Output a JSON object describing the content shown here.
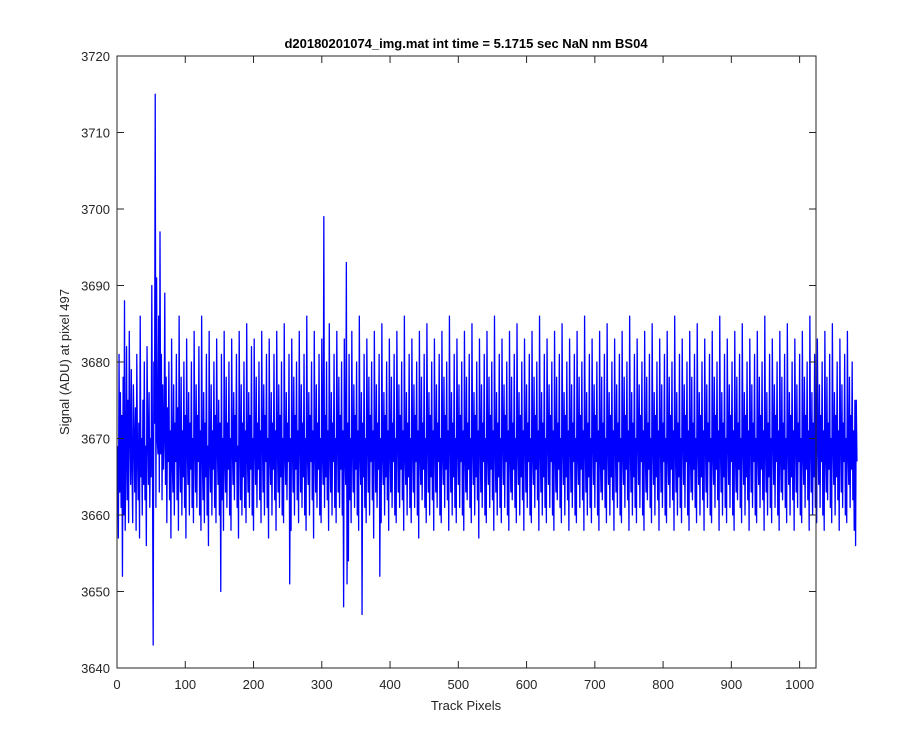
{
  "colors": {
    "series": "#0000ff",
    "axes": "#262626",
    "background": "#ffffff"
  },
  "chart_data": {
    "type": "line",
    "title": "d20180201074_img.mat int time = 5.1715 sec  NaN nm BS04",
    "xlabel": "Track Pixels",
    "ylabel": "Signal (ADU) at pixel 497",
    "xlim": [
      0,
      1024
    ],
    "ylim": [
      3640,
      3720
    ],
    "xticks": [
      0,
      100,
      200,
      300,
      400,
      500,
      600,
      700,
      800,
      900,
      1000
    ],
    "yticks": [
      3640,
      3650,
      3660,
      3670,
      3680,
      3690,
      3700,
      3710,
      3720
    ],
    "grid": false,
    "legend": "none",
    "series": [
      {
        "x_start": 1,
        "x_step": 1,
        "values": [
          3669,
          3657,
          3681,
          3663,
          3676,
          3661,
          3673,
          3652,
          3678,
          3660,
          3688,
          3658,
          3667,
          3682,
          3662,
          3675,
          3659,
          3684,
          3671,
          3664,
          3679,
          3666,
          3659,
          3677,
          3670,
          3663,
          3674,
          3658,
          3681,
          3668,
          3662,
          3672,
          3657,
          3686,
          3665,
          3670,
          3660,
          3675,
          3664,
          3680,
          3662,
          3669,
          3656,
          3682,
          3671,
          3664,
          3676,
          3661,
          3670,
          3665,
          3690,
          3666,
          3643,
          3680,
          3672,
          3715,
          3661,
          3691,
          3670,
          3668,
          3686,
          3663,
          3697,
          3668,
          3681,
          3662,
          3677,
          3666,
          3670,
          3689,
          3664,
          3678,
          3659,
          3674,
          3667,
          3680,
          3662,
          3671,
          3657,
          3683,
          3667,
          3663,
          3677,
          3660,
          3672,
          3667,
          3681,
          3662,
          3674,
          3658,
          3686,
          3668,
          3663,
          3678,
          3660,
          3671,
          3665,
          3680,
          3661,
          3673,
          3657,
          3683,
          3669,
          3664,
          3676,
          3660,
          3672,
          3666,
          3680,
          3661,
          3670,
          3659,
          3684,
          3669,
          3663,
          3677,
          3661,
          3673,
          3667,
          3682,
          3660,
          3671,
          3658,
          3686,
          3668,
          3662,
          3676,
          3659,
          3672,
          3665,
          3681,
          3660,
          3669,
          3656,
          3684,
          3668,
          3663,
          3677,
          3660,
          3671,
          3666,
          3680,
          3661,
          3673,
          3659,
          3683,
          3669,
          3664,
          3675,
          3660,
          3672,
          3650,
          3681,
          3662,
          3670,
          3658,
          3684,
          3667,
          3663,
          3678,
          3661,
          3672,
          3666,
          3680,
          3660,
          3670,
          3658,
          3683,
          3669,
          3664,
          3676,
          3662,
          3673,
          3667,
          3681,
          3661,
          3669,
          3657,
          3684,
          3670,
          3662,
          3677,
          3660,
          3672,
          3665,
          3680,
          3661,
          3671,
          3659,
          3685,
          3668,
          3663,
          3676,
          3661,
          3673,
          3666,
          3682,
          3660,
          3670,
          3658,
          3683,
          3669,
          3664,
          3678,
          3661,
          3672,
          3666,
          3680,
          3662,
          3671,
          3659,
          3684,
          3670,
          3663,
          3677,
          3660,
          3673,
          3667,
          3681,
          3661,
          3670,
          3657,
          3683,
          3668,
          3664,
          3676,
          3660,
          3672,
          3666,
          3681,
          3662,
          3671,
          3658,
          3684,
          3669,
          3663,
          3677,
          3661,
          3673,
          3665,
          3680,
          3660,
          3670,
          3659,
          3685,
          3668,
          3664,
          3676,
          3662,
          3672,
          3667,
          3681,
          3651,
          3670,
          3658,
          3683,
          3669,
          3663,
          3678,
          3660,
          3673,
          3666,
          3680,
          3662,
          3671,
          3659,
          3684,
          3670,
          3663,
          3677,
          3661,
          3672,
          3665,
          3681,
          3660,
          3670,
          3658,
          3686,
          3668,
          3664,
          3676,
          3660,
          3673,
          3667,
          3680,
          3662,
          3671,
          3657,
          3684,
          3669,
          3663,
          3677,
          3661,
          3672,
          3666,
          3681,
          3660,
          3670,
          3659,
          3683,
          3668,
          3664,
          3699,
          3661,
          3673,
          3665,
          3680,
          3662,
          3671,
          3658,
          3685,
          3669,
          3663,
          3676,
          3660,
          3672,
          3667,
          3681,
          3661,
          3670,
          3659,
          3684,
          3670,
          3663,
          3678,
          3661,
          3673,
          3666,
          3680,
          3660,
          3671,
          3648,
          3683,
          3668,
          3664,
          3693,
          3651,
          3672,
          3654,
          3681,
          3662,
          3670,
          3659,
          3684,
          3669,
          3663,
          3677,
          3661,
          3673,
          3666,
          3680,
          3660,
          3671,
          3658,
          3686,
          3668,
          3664,
          3676,
          3647,
          3672,
          3665,
          3681,
          3661,
          3670,
          3659,
          3683,
          3670,
          3663,
          3678,
          3660,
          3673,
          3667,
          3680,
          3662,
          3671,
          3657,
          3684,
          3669,
          3663,
          3677,
          3661,
          3672,
          3666,
          3681,
          3652,
          3670,
          3659,
          3685,
          3668,
          3664,
          3676,
          3660,
          3673,
          3665,
          3680,
          3662,
          3671,
          3658,
          3683,
          3669,
          3663,
          3678,
          3661,
          3672,
          3667,
          3681,
          3660,
          3670,
          3659,
          3684,
          3670,
          3663,
          3677,
          3661,
          3673,
          3666,
          3680,
          3662,
          3671,
          3658,
          3686,
          3668,
          3664,
          3676,
          3660,
          3672,
          3665,
          3681,
          3661,
          3670,
          3659,
          3683,
          3669,
          3663,
          3677,
          3661,
          3673,
          3667,
          3680,
          3660,
          3671,
          3657,
          3684,
          3668,
          3664,
          3678,
          3662,
          3672,
          3666,
          3681,
          3661,
          3670,
          3659,
          3685,
          3670,
          3663,
          3676,
          3660,
          3673,
          3665,
          3680,
          3662,
          3671,
          3658,
          3683,
          3669,
          3663,
          3677,
          3661,
          3672,
          3667,
          3681,
          3660,
          3670,
          3659,
          3684,
          3668,
          3664,
          3678,
          3661,
          3673,
          3666,
          3680,
          3662,
          3671,
          3658,
          3686,
          3670,
          3663,
          3676,
          3660,
          3672,
          3665,
          3681,
          3661,
          3670,
          3659,
          3683,
          3669,
          3664,
          3677,
          3661,
          3673,
          3667,
          3680,
          3660,
          3671,
          3658,
          3684,
          3668,
          3663,
          3678,
          3662,
          3672,
          3666,
          3681,
          3661,
          3670,
          3659,
          3685,
          3669,
          3664,
          3676,
          3660,
          3673,
          3665,
          3680,
          3662,
          3671,
          3657,
          3683,
          3670,
          3663,
          3677,
          3661,
          3672,
          3667,
          3681,
          3660,
          3670,
          3659,
          3684,
          3668,
          3664,
          3678,
          3661,
          3673,
          3666,
          3680,
          3662,
          3671,
          3658,
          3686,
          3669,
          3663,
          3676,
          3660,
          3672,
          3665,
          3681,
          3661,
          3670,
          3659,
          3683,
          3670,
          3664,
          3677,
          3661,
          3673,
          3667,
          3680,
          3660,
          3671,
          3658,
          3684,
          3668,
          3663,
          3678,
          3662,
          3672,
          3666,
          3681,
          3661,
          3670,
          3659,
          3685,
          3669,
          3664,
          3676,
          3660,
          3673,
          3665,
          3680,
          3662,
          3671,
          3658,
          3683,
          3670,
          3663,
          3677,
          3661,
          3672,
          3667,
          3681,
          3660,
          3670,
          3659,
          3684,
          3668,
          3664,
          3678,
          3661,
          3673,
          3666,
          3680,
          3662,
          3671,
          3658,
          3686,
          3669,
          3663,
          3676,
          3660,
          3672,
          3665,
          3681,
          3661,
          3670,
          3659,
          3683,
          3670,
          3664,
          3677,
          3661,
          3673,
          3667,
          3680,
          3660,
          3671,
          3658,
          3684,
          3668,
          3663,
          3678,
          3662,
          3672,
          3666,
          3681,
          3661,
          3670,
          3659,
          3685,
          3669,
          3664,
          3676,
          3660,
          3673,
          3665,
          3680,
          3662,
          3671,
          3658,
          3683,
          3670,
          3663,
          3677,
          3661,
          3672,
          3667,
          3681,
          3660,
          3670,
          3659,
          3684,
          3668,
          3664,
          3678,
          3661,
          3673,
          3666,
          3680,
          3662,
          3671,
          3658,
          3686,
          3669,
          3663,
          3676,
          3660,
          3672,
          3665,
          3681,
          3661,
          3670,
          3659,
          3683,
          3670,
          3664,
          3677,
          3661,
          3673,
          3667,
          3680,
          3660,
          3671,
          3658,
          3684,
          3668,
          3663,
          3678,
          3662,
          3672,
          3666,
          3681,
          3661,
          3670,
          3659,
          3685,
          3669,
          3664,
          3676,
          3660,
          3673,
          3665,
          3680,
          3662,
          3671,
          3658,
          3683,
          3670,
          3663,
          3677,
          3661,
          3672,
          3667,
          3681,
          3660,
          3670,
          3659,
          3684,
          3668,
          3664,
          3678,
          3661,
          3673,
          3666,
          3680,
          3662,
          3671,
          3658,
          3686,
          3669,
          3663,
          3676,
          3660,
          3672,
          3665,
          3681,
          3661,
          3670,
          3659,
          3683,
          3670,
          3664,
          3677,
          3661,
          3673,
          3667,
          3680,
          3660,
          3671,
          3658,
          3684,
          3668,
          3663,
          3678,
          3662,
          3672,
          3666,
          3681,
          3661,
          3670,
          3659,
          3685,
          3669,
          3664,
          3676,
          3660,
          3673,
          3665,
          3680,
          3662,
          3671,
          3658,
          3683,
          3670,
          3663,
          3677,
          3661,
          3672,
          3667,
          3681,
          3660,
          3670,
          3659,
          3684,
          3668,
          3664,
          3678,
          3661,
          3673,
          3666,
          3680,
          3662,
          3671,
          3658,
          3686,
          3669,
          3663,
          3676,
          3660,
          3672,
          3665,
          3681,
          3661,
          3670,
          3659,
          3683,
          3670,
          3664,
          3677,
          3661,
          3673,
          3667,
          3680,
          3660,
          3671,
          3658,
          3684,
          3668,
          3663,
          3678,
          3662,
          3672,
          3666,
          3681,
          3661,
          3670,
          3659,
          3685,
          3669,
          3664,
          3676,
          3660,
          3673,
          3665,
          3680,
          3662,
          3671,
          3658,
          3683,
          3670,
          3663,
          3677,
          3661,
          3672,
          3667,
          3681,
          3660,
          3670,
          3659,
          3684,
          3668,
          3664,
          3678,
          3661,
          3673,
          3666,
          3680,
          3662,
          3671,
          3658,
          3686,
          3669,
          3663,
          3676,
          3660,
          3672,
          3665,
          3681,
          3661,
          3670,
          3659,
          3683,
          3670,
          3664,
          3677,
          3661,
          3673,
          3667,
          3680,
          3660,
          3671,
          3658,
          3684,
          3668,
          3663,
          3678,
          3662,
          3672,
          3666,
          3681,
          3661,
          3670,
          3659,
          3685,
          3669,
          3664,
          3676,
          3660,
          3673,
          3665,
          3680,
          3662,
          3671,
          3658,
          3683,
          3670,
          3663,
          3677,
          3661,
          3672,
          3667,
          3681,
          3660,
          3670,
          3659,
          3684,
          3668,
          3664,
          3678,
          3661,
          3673,
          3666,
          3680,
          3662,
          3671,
          3658,
          3686,
          3669,
          3663,
          3676,
          3660,
          3672,
          3665,
          3681,
          3661,
          3670,
          3659,
          3683,
          3670,
          3664,
          3677,
          3661,
          3673,
          3667,
          3680,
          3660,
          3671,
          3658,
          3684,
          3668,
          3663,
          3678,
          3662,
          3672,
          3666,
          3681,
          3661,
          3670,
          3659,
          3685,
          3669,
          3664,
          3676,
          3660,
          3673,
          3665,
          3680,
          3662,
          3671,
          3658,
          3683,
          3670,
          3663,
          3677,
          3661,
          3672,
          3667,
          3681,
          3660,
          3670,
          3659,
          3684,
          3668,
          3664,
          3678,
          3661,
          3673,
          3666,
          3680,
          3662,
          3671,
          3658,
          3686,
          3669,
          3663,
          3676,
          3660,
          3672,
          3665,
          3681,
          3661,
          3670,
          3659,
          3683,
          3670,
          3664,
          3677,
          3661,
          3673,
          3667,
          3680,
          3660,
          3671,
          3658,
          3684,
          3668,
          3663,
          3678,
          3662,
          3672,
          3666,
          3681,
          3661,
          3670,
          3659,
          3685,
          3669,
          3664,
          3676,
          3660,
          3673,
          3665,
          3680,
          3662,
          3671,
          3658,
          3683,
          3670,
          3663,
          3677,
          3661,
          3672,
          3667,
          3681,
          3660,
          3670,
          3659,
          3684,
          3668,
          3664,
          3678,
          3661,
          3673,
          3666,
          3680,
          3662,
          3671,
          3658,
          3675,
          3656,
          3675,
          3667
        ]
      }
    ]
  }
}
